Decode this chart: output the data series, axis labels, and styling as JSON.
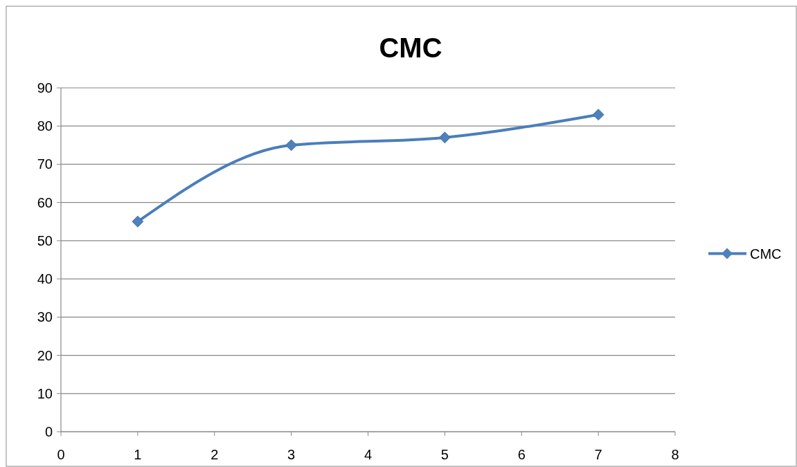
{
  "chart_data": {
    "type": "line",
    "title": "CMC",
    "series": [
      {
        "name": "CMC",
        "color": "#4a7ebb",
        "x": [
          1,
          3,
          5,
          7
        ],
        "values": [
          55,
          75,
          77,
          83
        ]
      }
    ],
    "xlim": [
      0,
      8
    ],
    "xticks": [
      0,
      1,
      2,
      3,
      4,
      5,
      6,
      7,
      8
    ],
    "ylim": [
      0,
      90
    ],
    "yticks": [
      0,
      10,
      20,
      30,
      40,
      50,
      60,
      70,
      80,
      90
    ],
    "grid": "y",
    "legend": "right",
    "marker": "diamond",
    "line_style": "solid"
  }
}
